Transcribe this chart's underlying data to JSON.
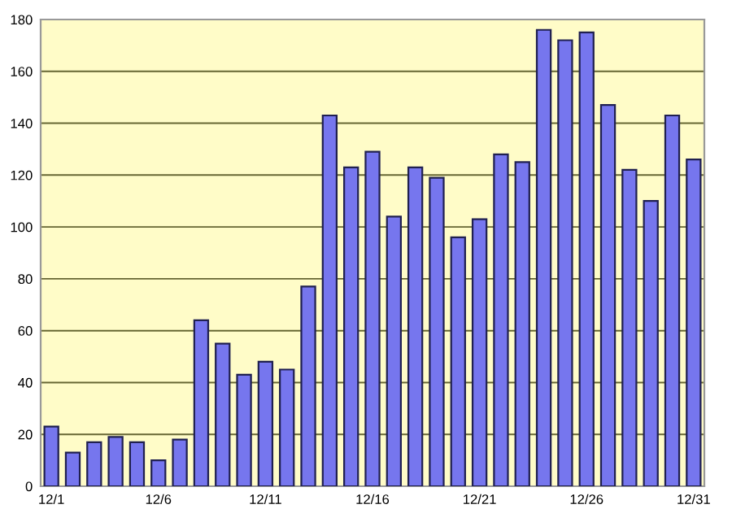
{
  "chart_data": {
    "type": "bar",
    "categories": [
      "12/1",
      null,
      null,
      null,
      null,
      "12/6",
      null,
      null,
      null,
      null,
      "12/11",
      null,
      null,
      null,
      null,
      "12/16",
      null,
      null,
      null,
      null,
      "12/21",
      null,
      null,
      null,
      null,
      "12/26",
      null,
      null,
      null,
      null,
      "12/31"
    ],
    "values": [
      23,
      13,
      17,
      19,
      17,
      10,
      18,
      64,
      55,
      43,
      48,
      45,
      77,
      143,
      123,
      129,
      104,
      123,
      119,
      96,
      103,
      128,
      125,
      176,
      172,
      175,
      147,
      122,
      110,
      143,
      126
    ],
    "color": "#7676ee",
    "ylim": [
      0,
      180
    ],
    "yticks": [
      0,
      20,
      40,
      60,
      80,
      100,
      120,
      140,
      160,
      180
    ],
    "grid": "y"
  }
}
